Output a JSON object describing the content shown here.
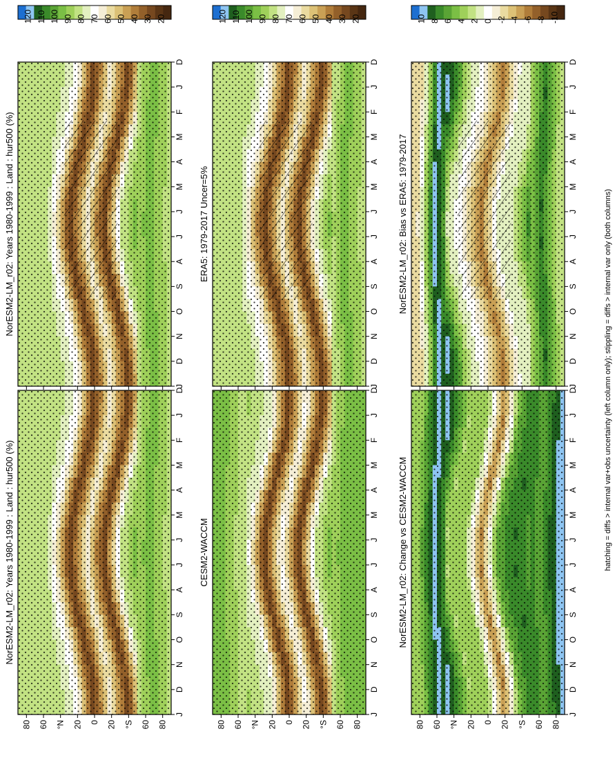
{
  "figure": {
    "caption": "hatching = diffs > internal var+obs uncertainty (left column only); stippling = diffs > internal var only (both columns)"
  },
  "months": [
    "D",
    "J",
    "F",
    "M",
    "A",
    "M",
    "J",
    "J",
    "A",
    "S",
    "O",
    "N",
    "D",
    "J"
  ],
  "lat_ticks": [
    "80",
    "60",
    "°N",
    "20",
    "0",
    "20",
    "°S",
    "60",
    "80"
  ],
  "colorbars": {
    "absolute": {
      "labels": [
        "120",
        "110",
        "100",
        "90",
        "80",
        "70",
        "60",
        "50",
        "40",
        "30",
        "20"
      ],
      "colors": [
        "#1d6fd1",
        "#8ec5f2",
        "#1f5f1f",
        "#3a8a2a",
        "#5aa435",
        "#7bbf45",
        "#9fd05a",
        "#c2e283",
        "#e3f0c0",
        "#ffffff",
        "#f5eed6",
        "#eadba0",
        "#dcc176",
        "#c9a055",
        "#b07d3a",
        "#93602a",
        "#76481f",
        "#5a3515",
        "#452710"
      ]
    },
    "difference": {
      "labels": [
        "10",
        "8",
        "6",
        "4",
        "2",
        "0",
        "-2",
        "-4",
        "-6",
        "-8",
        "-10"
      ],
      "colors": [
        "#1d6fd1",
        "#8ec5f2",
        "#1f5f1f",
        "#3a8a2a",
        "#5aa435",
        "#7bbf45",
        "#9fd05a",
        "#c2e283",
        "#e3f0c0",
        "#ffffff",
        "#f5eed6",
        "#eadba0",
        "#dcc176",
        "#c9a055",
        "#b07d3a",
        "#93602a",
        "#76481f",
        "#5a3515",
        "#452710"
      ]
    }
  },
  "panels": [
    {
      "title": "NorESM2-LM_r02: Years 1980-1999 : Land : hur500 (%)",
      "scale": "absolute",
      "hatch": true
    },
    {
      "title": "NorESM2-LM_r02: Years 1980-1999 : Land : hur500 (%)",
      "scale": "absolute",
      "hatch": false
    },
    {
      "title": "ERA5: 1979-2017 Uncer=5%",
      "scale": "absolute",
      "hatch": true
    },
    {
      "title": "CESM2-WACCM",
      "scale": "absolute",
      "hatch": false
    },
    {
      "title": "NorESM2-LM_r02: Bias vs ERA5: 1979-2017",
      "scale": "difference",
      "hatch": true
    },
    {
      "title": "NorESM2-LM_r02: Change vs CESM2-WACCM",
      "scale": "difference",
      "hatch": false
    }
  ],
  "chart_data": {
    "type": "heatmap",
    "variable": "hur500 (%)",
    "x_axis": "latitude",
    "y_axis": "month",
    "lat_range": [
      -90,
      90
    ],
    "months": [
      "D",
      "J",
      "F",
      "M",
      "A",
      "M",
      "J",
      "J",
      "A",
      "S",
      "O",
      "N",
      "D",
      "J"
    ],
    "series": [
      {
        "name": "NorESM2-LM_r02: Years 1980-1999 : Land : hur500 (%)",
        "zones_lat_value": [
          [
            -85,
            85
          ],
          [
            -65,
            95
          ],
          [
            -45,
            80
          ],
          [
            -25,
            25
          ],
          [
            -5,
            65
          ],
          [
            15,
            25
          ],
          [
            35,
            70
          ],
          [
            60,
            85
          ],
          [
            80,
            85
          ]
        ]
      },
      {
        "name": "ERA5: 1979-2017 Uncer=5%",
        "zones_lat_value": [
          [
            -85,
            85
          ],
          [
            -65,
            95
          ],
          [
            -45,
            75
          ],
          [
            -25,
            25
          ],
          [
            -5,
            65
          ],
          [
            15,
            25
          ],
          [
            35,
            65
          ],
          [
            60,
            85
          ],
          [
            80,
            85
          ]
        ]
      },
      {
        "name": "CESM2-WACCM",
        "zones_lat_value": [
          [
            -85,
            95
          ],
          [
            -65,
            95
          ],
          [
            -45,
            80
          ],
          [
            -25,
            25
          ],
          [
            -5,
            70
          ],
          [
            15,
            25
          ],
          [
            35,
            75
          ],
          [
            60,
            85
          ],
          [
            80,
            95
          ]
        ]
      },
      {
        "name": "NorESM2-LM_r02: Bias vs ERA5: 1979-2017",
        "zones_lat_value": [
          [
            -85,
            2
          ],
          [
            -65,
            8
          ],
          [
            -45,
            2
          ],
          [
            -25,
            1
          ],
          [
            -5,
            -6
          ],
          [
            15,
            -1
          ],
          [
            35,
            2
          ],
          [
            60,
            10
          ],
          [
            80,
            -2
          ]
        ]
      },
      {
        "name": "NorESM2-LM_r02: Change vs CESM2-WACCM",
        "zones_lat_value": [
          [
            -85,
            10
          ],
          [
            -65,
            6
          ],
          [
            -45,
            8
          ],
          [
            -25,
            6
          ],
          [
            -5,
            -6
          ],
          [
            15,
            4
          ],
          [
            35,
            3
          ],
          [
            60,
            10
          ],
          [
            80,
            4
          ]
        ]
      }
    ]
  }
}
